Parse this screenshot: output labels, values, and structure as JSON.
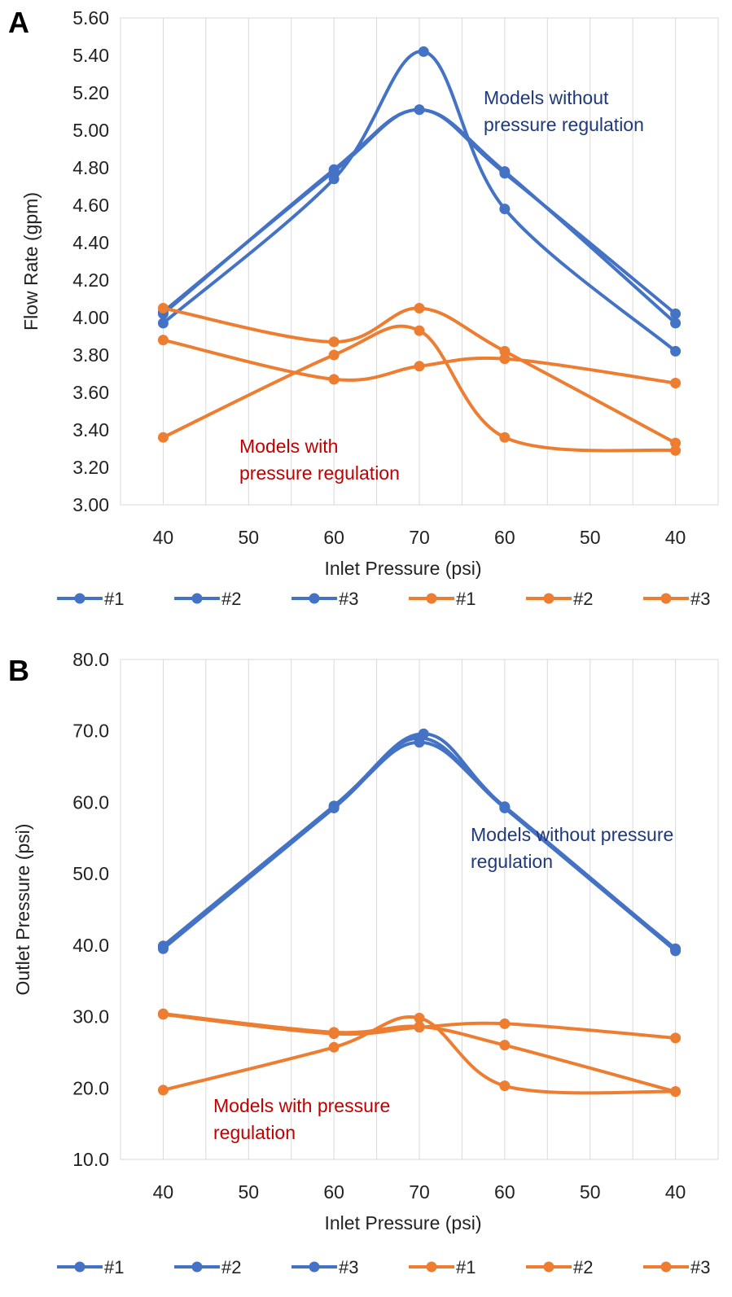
{
  "chart_data": [
    {
      "type": "line",
      "panel_label": "A",
      "xlabel": "Inlet Pressure (psi)",
      "ylabel": "Flow Rate (gpm)",
      "categories": [
        "40",
        "50",
        "60",
        "70",
        "60",
        "50",
        "40"
      ],
      "ylim": [
        3.0,
        5.6
      ],
      "yticks": [
        "3.00",
        "3.20",
        "3.40",
        "3.60",
        "3.80",
        "4.00",
        "4.20",
        "4.40",
        "4.60",
        "4.80",
        "5.00",
        "5.20",
        "5.40",
        "5.60"
      ],
      "grid": "vertical",
      "legend_position": "bottom",
      "series": [
        {
          "name": "#1",
          "color": "#4472C4",
          "points": [
            [
              0,
              4.03
            ],
            [
              2,
              4.78
            ],
            [
              3,
              5.11
            ],
            [
              4,
              4.77
            ],
            [
              6,
              4.02
            ]
          ]
        },
        {
          "name": "#2",
          "color": "#4472C4",
          "points": [
            [
              0,
              4.02
            ],
            [
              2,
              4.79
            ],
            [
              3,
              5.11
            ],
            [
              4,
              4.78
            ],
            [
              6,
              3.97
            ]
          ]
        },
        {
          "name": "#3",
          "color": "#4472C4",
          "points": [
            [
              0,
              3.97
            ],
            [
              2,
              4.74
            ],
            [
              3.05,
              5.42
            ],
            [
              4,
              4.58
            ],
            [
              6,
              3.82
            ]
          ]
        },
        {
          "name": "#1",
          "color": "#ED7D31",
          "points": [
            [
              0,
              4.05
            ],
            [
              2,
              3.87
            ],
            [
              3,
              4.05
            ],
            [
              4,
              3.82
            ],
            [
              6,
              3.33
            ]
          ]
        },
        {
          "name": "#2",
          "color": "#ED7D31",
          "points": [
            [
              0,
              3.88
            ],
            [
              2,
              3.67
            ],
            [
              3,
              3.74
            ],
            [
              4,
              3.78
            ],
            [
              6,
              3.65
            ]
          ]
        },
        {
          "name": "#3",
          "color": "#ED7D31",
          "points": [
            [
              0,
              3.36
            ],
            [
              2,
              3.8
            ],
            [
              3,
              3.93
            ],
            [
              4,
              3.36
            ],
            [
              6,
              3.29
            ]
          ]
        }
      ],
      "annotations": [
        {
          "lines": [
            "Models without",
            "pressure regulation"
          ],
          "color": "#1F3A7A"
        },
        {
          "lines": [
            "Models with",
            "pressure regulation"
          ],
          "color": "#C00000"
        }
      ]
    },
    {
      "type": "line",
      "panel_label": "B",
      "xlabel": "Inlet Pressure (psi)",
      "ylabel": "Outlet Pressure (psi)",
      "categories": [
        "40",
        "50",
        "60",
        "70",
        "60",
        "50",
        "40"
      ],
      "ylim": [
        10.0,
        80.0
      ],
      "yticks": [
        "10.0",
        "20.0",
        "30.0",
        "40.0",
        "50.0",
        "60.0",
        "70.0",
        "80.0"
      ],
      "grid": "vertical",
      "legend_position": "bottom",
      "series": [
        {
          "name": "#1",
          "color": "#4472C4",
          "points": [
            [
              0,
              39.8
            ],
            [
              2,
              59.4
            ],
            [
              3,
              68.4
            ],
            [
              4,
              59.4
            ],
            [
              6,
              39.4
            ]
          ]
        },
        {
          "name": "#2",
          "color": "#4472C4",
          "points": [
            [
              0,
              39.5
            ],
            [
              2,
              59.2
            ],
            [
              3,
              69.0
            ],
            [
              4,
              59.2
            ],
            [
              6,
              39.2
            ]
          ]
        },
        {
          "name": "#3",
          "color": "#4472C4",
          "points": [
            [
              0,
              39.9
            ],
            [
              2,
              59.5
            ],
            [
              3.05,
              69.6
            ],
            [
              4,
              59.3
            ],
            [
              6,
              39.5
            ]
          ]
        },
        {
          "name": "#1",
          "color": "#ED7D31",
          "points": [
            [
              0,
              30.4
            ],
            [
              2,
              27.8
            ],
            [
              3,
              28.6
            ],
            [
              4,
              26.0
            ],
            [
              6,
              19.5
            ]
          ]
        },
        {
          "name": "#2",
          "color": "#ED7D31",
          "points": [
            [
              0,
              30.3
            ],
            [
              2,
              27.6
            ],
            [
              3,
              28.5
            ],
            [
              4,
              29.0
            ],
            [
              6,
              27.0
            ]
          ]
        },
        {
          "name": "#3",
          "color": "#ED7D31",
          "points": [
            [
              0,
              19.7
            ],
            [
              2,
              25.7
            ],
            [
              3,
              29.8
            ],
            [
              4,
              20.3
            ],
            [
              6,
              19.5
            ]
          ]
        }
      ],
      "annotations": [
        {
          "lines": [
            "Models without pressure",
            "regulation"
          ],
          "color": "#1F3A7A"
        },
        {
          "lines": [
            "Models with pressure",
            "regulation"
          ],
          "color": "#C00000"
        }
      ]
    }
  ]
}
